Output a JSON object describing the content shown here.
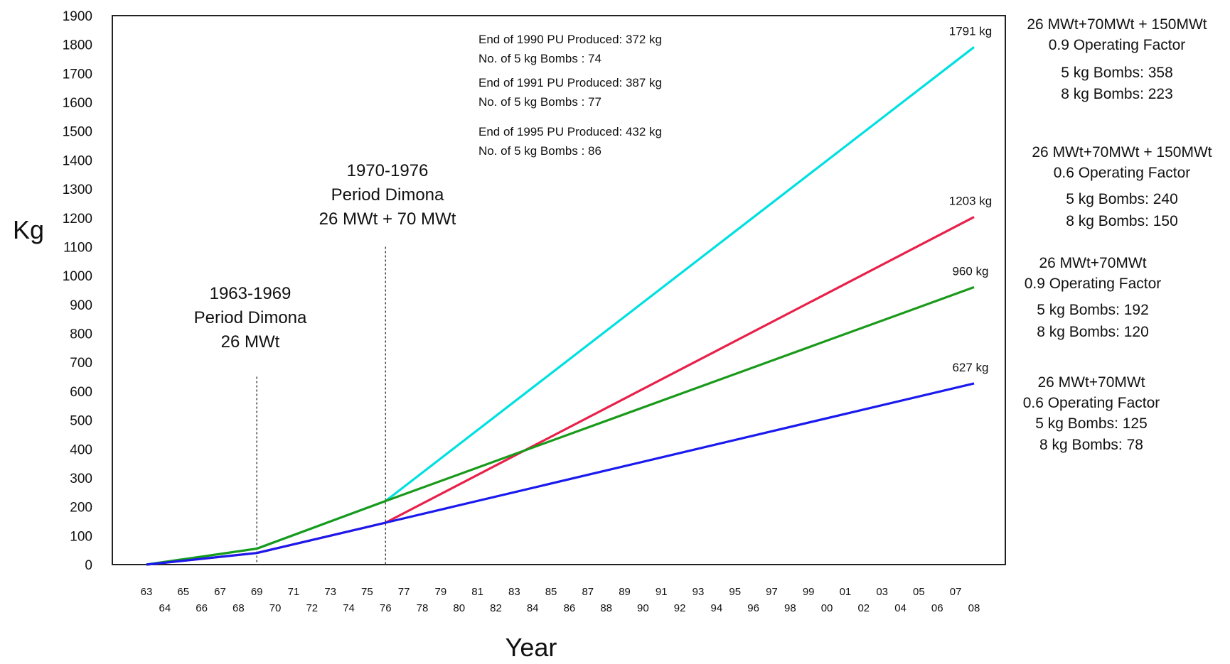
{
  "chart_data": {
    "type": "line",
    "xlabel": "Year",
    "ylabel": "Kg",
    "xlim": [
      1963,
      2008
    ],
    "ylim": [
      0,
      1900
    ],
    "y_ticks": [
      0,
      100,
      200,
      300,
      400,
      500,
      600,
      700,
      800,
      900,
      1000,
      1100,
      1200,
      1300,
      1400,
      1500,
      1600,
      1700,
      1800,
      1900
    ],
    "x_tick_labels": [
      "63",
      "64",
      "65",
      "66",
      "67",
      "68",
      "69",
      "70",
      "71",
      "72",
      "73",
      "74",
      "75",
      "76",
      "77",
      "78",
      "79",
      "80",
      "81",
      "82",
      "83",
      "84",
      "85",
      "86",
      "87",
      "88",
      "89",
      "90",
      "91",
      "92",
      "93",
      "94",
      "95",
      "96",
      "97",
      "98",
      "99",
      "00",
      "01",
      "02",
      "03",
      "04",
      "05",
      "06",
      "07",
      "08"
    ],
    "grid": false,
    "series": [
      {
        "color": "#00e0e0",
        "x": [
          1963,
          1969,
          1976,
          2008
        ],
        "y": [
          0,
          55,
          220,
          1791
        ],
        "end_label": "1791 kg"
      },
      {
        "color": "#e8204a",
        "x": [
          1963,
          1969,
          1976,
          2008
        ],
        "y": [
          0,
          40,
          145,
          1203
        ],
        "end_label": "1203 kg"
      },
      {
        "color": "#1a9a1a",
        "x": [
          1963,
          1969,
          1976,
          2008
        ],
        "y": [
          0,
          55,
          220,
          960
        ],
        "end_label": "960 kg"
      },
      {
        "color": "#1a1aee",
        "x": [
          1963,
          1969,
          1976,
          2008
        ],
        "y": [
          0,
          40,
          145,
          627
        ],
        "end_label": "627 kg"
      }
    ],
    "periods": [
      {
        "year": 1969,
        "line_top": 650,
        "lines": [
          "1963-1969",
          "Period Dimona",
          "26 MWt"
        ]
      },
      {
        "year": 1976,
        "line_top": 1100,
        "lines": [
          "1970-1976",
          "Period Dimona",
          "26 MWt + 70 MWt"
        ]
      }
    ],
    "notes": [
      {
        "lines": [
          "End of 1990 PU Produced: 372 kg",
          "No. of 5 kg Bombs : 74"
        ]
      },
      {
        "lines": [
          "End of 1991 PU Produced: 387 kg",
          "No. of 5 kg Bombs : 77"
        ]
      },
      {
        "lines": [
          "End of 1995 PU Produced: 432 kg",
          "No. of 5 kg Bombs : 86"
        ]
      }
    ],
    "scenarios": [
      {
        "lines": [
          "26 MWt+70MWt + 150MWt",
          "0.9 Operating Factor",
          "5 kg Bombs: 358",
          "8 kg Bombs: 223"
        ]
      },
      {
        "lines": [
          "26 MWt+70MWt + 150MWt",
          "0.6 Operating Factor",
          "5 kg Bombs: 240",
          "8 kg Bombs: 150"
        ]
      },
      {
        "lines": [
          "26 MWt+70MWt",
          "0.9 Operating Factor",
          "5 kg Bombs: 192",
          "8 kg Bombs: 120"
        ]
      },
      {
        "lines": [
          "26 MWt+70MWt",
          "0.6 Operating Factor",
          "5 kg Bombs: 125",
          "8 kg Bombs:  78"
        ]
      }
    ]
  }
}
